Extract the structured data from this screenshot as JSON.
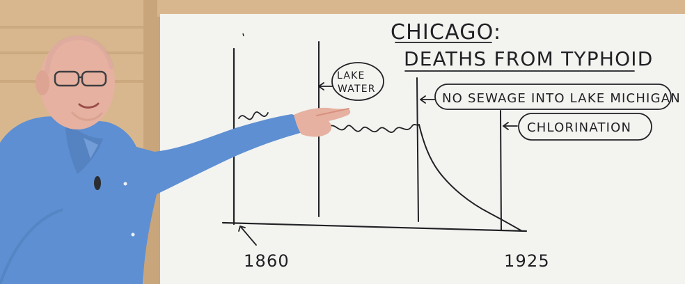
{
  "whiteboard": {
    "title_line1": "CHICAGO:",
    "title_line2": "DEATHS FROM TYPHOID",
    "labels": {
      "lake_water_line1": "LAKE",
      "lake_water_line2": "WATER",
      "no_sewage": "NO SEWAGE INTO LAKE MICHIGAN",
      "chlorination": "CHLORINATION"
    },
    "axis": {
      "start_year": "1860",
      "end_year": "1925"
    }
  },
  "colors": {
    "board": "#f3f3f0",
    "frame": "#d8b78f",
    "marker": "#202124",
    "shirt": "#5d8fd2",
    "skin": "#e6b1a0"
  }
}
